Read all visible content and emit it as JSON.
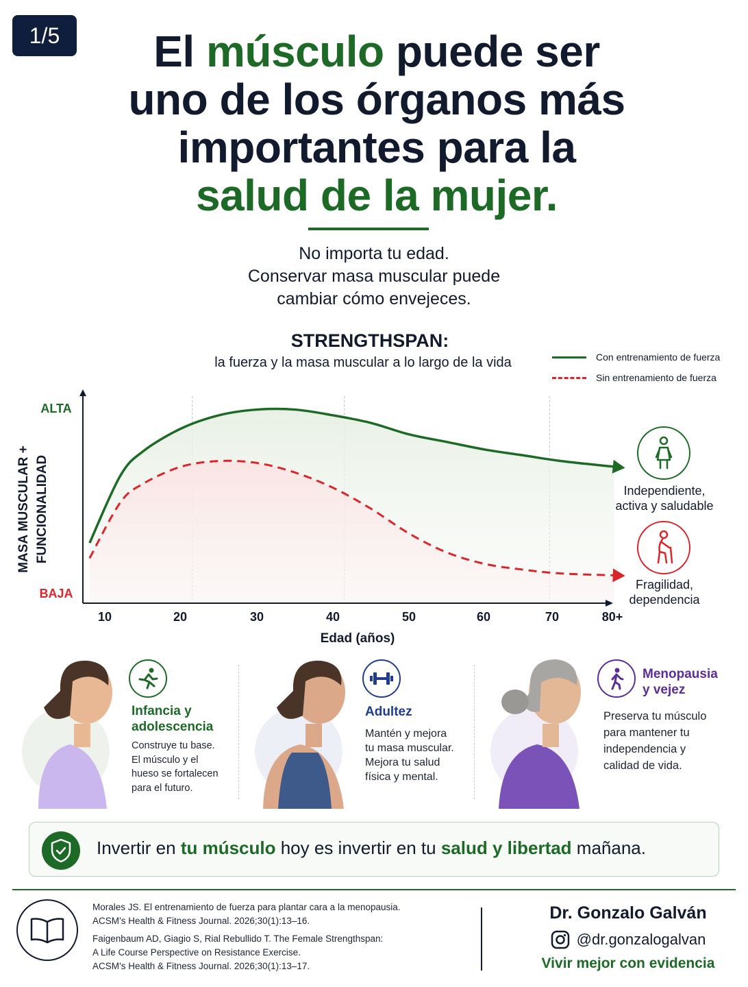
{
  "badge": "1/5",
  "title": {
    "part1": "El ",
    "highlight1": "músculo",
    "part2": " puede ser",
    "line2": "uno de los órganos más",
    "line3": "importantes para la",
    "highlight2": "salud de la mujer."
  },
  "subtitle": {
    "line1": "No importa tu edad.",
    "line2": "Conservar masa muscular puede",
    "line3": "cambiar cómo envejeces."
  },
  "chart_data": {
    "type": "line",
    "title": "STRENGTHSPAN:",
    "subtitle": "la fuerza y la masa muscular a lo largo de la vida",
    "xlabel": "Edad (años)",
    "ylabel_line1": "MASA MUSCULAR +",
    "ylabel_line2": "FUNCIONALIDAD",
    "y_high_label": "ALTA",
    "y_low_label": "BAJA",
    "x_ticks": [
      "10",
      "20",
      "30",
      "40",
      "50",
      "60",
      "70",
      "80+"
    ],
    "ylim": [
      0,
      100
    ],
    "series": [
      {
        "name": "Con entrenamiento de fuerza",
        "color": "#1d6a26",
        "style": "solid",
        "points": [
          [
            8,
            28
          ],
          [
            12,
            63
          ],
          [
            15,
            76
          ],
          [
            20,
            88
          ],
          [
            25,
            95
          ],
          [
            30,
            98
          ],
          [
            35,
            98
          ],
          [
            40,
            95
          ],
          [
            45,
            91
          ],
          [
            50,
            85
          ],
          [
            55,
            81
          ],
          [
            60,
            77
          ],
          [
            65,
            74
          ],
          [
            70,
            71
          ],
          [
            77,
            68
          ]
        ]
      },
      {
        "name": "Sin entrenamiento de fuerza",
        "color": "#d9262a",
        "style": "dashed",
        "points": [
          [
            8,
            20
          ],
          [
            12,
            49
          ],
          [
            15,
            59
          ],
          [
            20,
            68
          ],
          [
            25,
            71
          ],
          [
            30,
            70
          ],
          [
            35,
            65
          ],
          [
            40,
            57
          ],
          [
            45,
            46
          ],
          [
            50,
            33
          ],
          [
            55,
            23
          ],
          [
            60,
            17
          ],
          [
            65,
            14
          ],
          [
            70,
            12
          ],
          [
            77,
            11
          ]
        ]
      }
    ],
    "annotations": [
      {
        "text_line1": "Independiente,",
        "text_line2": "activa y saludable",
        "color": "#1d6a26",
        "icon": "standing-woman-icon"
      },
      {
        "text_line1": "Fragilidad,",
        "text_line2": "dependencia",
        "color": "#d9262a",
        "icon": "elderly-cane-icon"
      }
    ]
  },
  "stages": [
    {
      "title_line1": "Infancia y",
      "title_line2": "adolescencia",
      "color": "#1d6a26",
      "icon": "running-icon",
      "text": [
        "Construye tu base.",
        "El músculo y el",
        "hueso se fortalecen",
        "para el futuro."
      ]
    },
    {
      "title_line1": "Adultez",
      "title_line2": "",
      "color": "#1f3c8f",
      "icon": "dumbbell-icon",
      "text": [
        "Mantén y mejora",
        "tu masa muscular.",
        "Mejora tu salud",
        "física y mental."
      ]
    },
    {
      "title_line1": "Menopausia",
      "title_line2": "y vejez",
      "color": "#5b2d99",
      "icon": "walking-icon",
      "text": [
        "Preserva tu músculo",
        "para mantener tu",
        "independencia y",
        "calidad de vida."
      ]
    }
  ],
  "cta": {
    "part1": "Invertir en ",
    "highlight1": "tu músculo",
    "part2": " hoy es invertir en tu ",
    "highlight2": "salud y libertad",
    "part3": " mañana."
  },
  "references": [
    {
      "line1": "Morales JS. El entrenamiento de fuerza para plantar cara a la menopausia.",
      "line2": "ACSM’s Health & Fitness Journal. 2026;30(1):13–16.",
      "line3": ""
    },
    {
      "line1": "Faigenbaum AD, Giagio S, Rial Rebullido T. The Female Strengthspan:",
      "line2": "A Life Course Perspective on Resistance Exercise.",
      "line3": "ACSM’s Health & Fitness Journal. 2026;30(1):13–17."
    }
  ],
  "author": {
    "name": "Dr. Gonzalo Galván",
    "handle": "@dr.gonzalogalvan",
    "tagline": "Vivir mejor con evidencia"
  },
  "colors": {
    "green": "#1d6a26",
    "red": "#d9262a",
    "navy": "#0f1e3d",
    "purple": "#5b2d99",
    "blue": "#1f3c8f"
  }
}
